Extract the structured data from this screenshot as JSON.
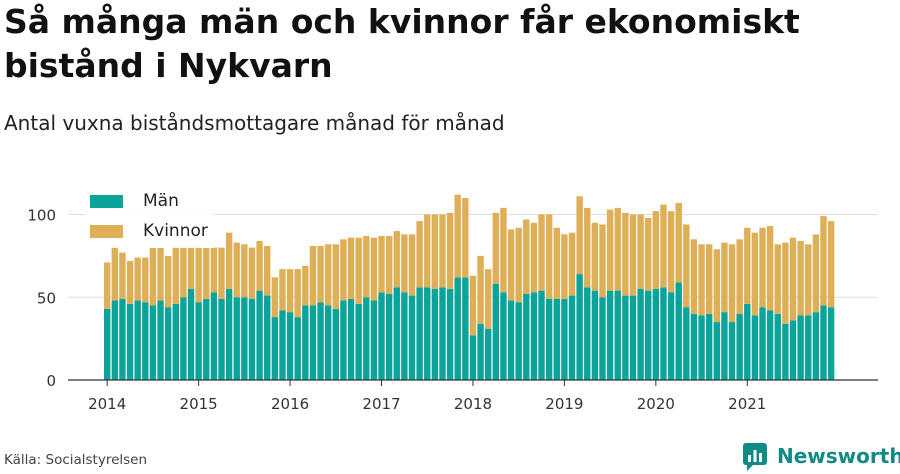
{
  "title": "Så många män och kvinnor får ekonomiskt bistånd i Nykvarn",
  "subtitle": "Antal vuxna biståndsmottagare månad för månad",
  "source": "Källa: Socialstyrelsen",
  "brand": {
    "name": "Newsworthy",
    "icon": "bar-chart-logo-icon"
  },
  "colors": {
    "men": "#0aa49a",
    "women": "#deaf56",
    "grid": "#dddddd",
    "axis": "#333333"
  },
  "chart_data": {
    "type": "bar",
    "stacked": true,
    "ylim": [
      0,
      115
    ],
    "yticks": [
      0,
      50,
      100
    ],
    "xtick_labels": [
      "2014",
      "2015",
      "2016",
      "2017",
      "2018",
      "2019",
      "2020",
      "2021"
    ],
    "legend_position": "top-left",
    "grid": true,
    "categories": [
      "2014-01",
      "2014-02",
      "2014-03",
      "2014-04",
      "2014-05",
      "2014-06",
      "2014-07",
      "2014-08",
      "2014-09",
      "2014-10",
      "2014-11",
      "2014-12",
      "2015-01",
      "2015-02",
      "2015-03",
      "2015-04",
      "2015-05",
      "2015-06",
      "2015-07",
      "2015-08",
      "2015-09",
      "2015-10",
      "2015-11",
      "2015-12",
      "2016-01",
      "2016-02",
      "2016-03",
      "2016-04",
      "2016-05",
      "2016-06",
      "2016-07",
      "2016-08",
      "2016-09",
      "2016-10",
      "2016-11",
      "2016-12",
      "2017-01",
      "2017-02",
      "2017-03",
      "2017-04",
      "2017-05",
      "2017-06",
      "2017-07",
      "2017-08",
      "2017-09",
      "2017-10",
      "2017-11",
      "2017-12",
      "2018-01",
      "2018-02",
      "2018-03",
      "2018-04",
      "2018-05",
      "2018-06",
      "2018-07",
      "2018-08",
      "2018-09",
      "2018-10",
      "2018-11",
      "2018-12",
      "2019-01",
      "2019-02",
      "2019-03",
      "2019-04",
      "2019-05",
      "2019-06",
      "2019-07",
      "2019-08",
      "2019-09",
      "2019-10",
      "2019-11",
      "2019-12",
      "2020-01",
      "2020-02",
      "2020-03",
      "2020-04",
      "2020-05",
      "2020-06",
      "2020-07",
      "2020-08",
      "2020-09",
      "2020-10",
      "2020-11",
      "2020-12",
      "2021-01",
      "2021-02",
      "2021-03",
      "2021-04",
      "2021-05",
      "2021-06",
      "2021-07",
      "2021-08",
      "2021-09",
      "2021-10",
      "2021-11",
      "2021-12"
    ],
    "series": [
      {
        "name": "Män",
        "values": [
          43,
          48,
          49,
          46,
          48,
          47,
          45,
          48,
          44,
          46,
          50,
          55,
          47,
          49,
          53,
          49,
          55,
          50,
          50,
          49,
          54,
          51,
          38,
          42,
          41,
          38,
          45,
          45,
          47,
          45,
          43,
          48,
          49,
          46,
          50,
          48,
          53,
          52,
          56,
          53,
          51,
          56,
          56,
          55,
          56,
          55,
          62,
          62,
          27,
          34,
          31,
          58,
          53,
          48,
          47,
          52,
          53,
          54,
          49,
          49,
          49,
          51,
          64,
          56,
          54,
          50,
          54,
          54,
          51,
          51,
          55,
          54,
          55,
          56,
          53,
          59,
          44,
          40,
          39,
          40,
          35,
          41,
          35,
          40,
          46,
          39,
          44,
          42,
          40,
          34,
          36,
          39,
          39,
          41,
          45,
          44
        ]
      },
      {
        "name": "Kvinnor",
        "values": [
          28,
          33,
          28,
          26,
          26,
          27,
          35,
          32,
          31,
          35,
          31,
          26,
          34,
          31,
          27,
          31,
          34,
          33,
          32,
          31,
          30,
          30,
          24,
          25,
          26,
          29,
          24,
          36,
          34,
          37,
          39,
          37,
          37,
          40,
          37,
          38,
          34,
          35,
          34,
          35,
          37,
          40,
          44,
          45,
          44,
          46,
          50,
          48,
          36,
          41,
          36,
          43,
          51,
          43,
          45,
          45,
          42,
          46,
          51,
          43,
          39,
          38,
          47,
          48,
          41,
          44,
          49,
          50,
          50,
          49,
          45,
          44,
          47,
          50,
          49,
          48,
          50,
          45,
          43,
          42,
          44,
          42,
          47,
          45,
          46,
          50,
          48,
          51,
          42,
          49,
          50,
          45,
          43,
          47,
          54,
          52
        ]
      }
    ]
  }
}
